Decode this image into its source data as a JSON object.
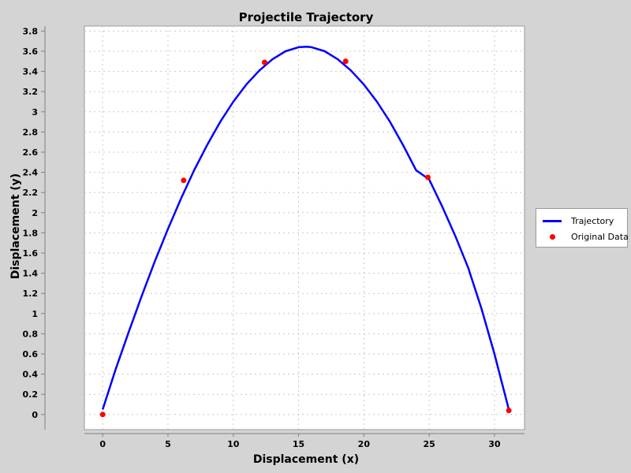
{
  "chart_data": {
    "type": "line",
    "title": "Projectile Trajectory",
    "xlabel": "Displacement (x)",
    "ylabel": "Displacement (y)",
    "xlim": [
      -1.4,
      32.3
    ],
    "ylim": [
      -0.15,
      3.85
    ],
    "x_ticks": [
      0,
      5,
      10,
      15,
      20,
      25,
      30
    ],
    "x_tick_labels": [
      "0",
      "5",
      "10",
      "15",
      "20",
      "25",
      "30"
    ],
    "y_ticks": [
      0,
      0.2,
      0.4,
      0.6,
      0.8,
      1.0,
      1.2,
      1.4,
      1.6,
      1.8,
      2.0,
      2.2,
      2.4,
      2.6,
      2.8,
      3.0,
      3.2,
      3.4,
      3.6,
      3.8
    ],
    "y_tick_labels": [
      "0",
      "0.2",
      "0.4",
      "0.6",
      "0.8",
      "1",
      "1.2",
      "1.4",
      "1.6",
      "1.8",
      "2",
      "2.2",
      "2.4",
      "2.6",
      "2.8",
      "3",
      "3.2",
      "3.4",
      "3.6",
      "3.8"
    ],
    "grid": true,
    "legend_position": "right",
    "series": [
      {
        "name": "Trajectory",
        "style": "line",
        "color": "#0000ff",
        "x": [
          0,
          1,
          2,
          3,
          4,
          5,
          6,
          7,
          8,
          9,
          10,
          11,
          12,
          13,
          14,
          15,
          15.6,
          16,
          17,
          18,
          19,
          20,
          21,
          22,
          23,
          24,
          25,
          26,
          27,
          28,
          29,
          30,
          31.1
        ],
        "y": [
          0.05,
          0.45,
          0.82,
          1.18,
          1.52,
          1.84,
          2.14,
          2.42,
          2.67,
          2.9,
          3.1,
          3.27,
          3.41,
          3.52,
          3.6,
          3.64,
          3.645,
          3.64,
          3.6,
          3.52,
          3.41,
          3.27,
          3.1,
          2.9,
          2.67,
          2.42,
          2.33,
          2.06,
          1.77,
          1.45,
          1.05,
          0.6,
          0.05
        ]
      },
      {
        "name": "Original Data",
        "style": "points",
        "color": "#ff0000",
        "x": [
          0,
          6.2,
          12.4,
          18.6,
          24.9,
          31.1
        ],
        "y": [
          0.0,
          2.32,
          3.49,
          3.5,
          2.35,
          0.04
        ]
      }
    ]
  }
}
